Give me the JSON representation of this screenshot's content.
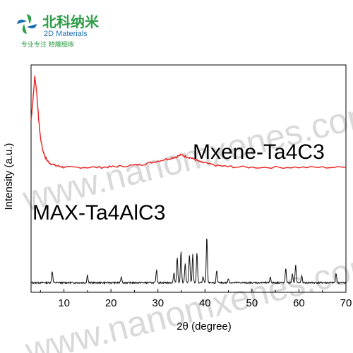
{
  "logo": {
    "name_cn": "北科纳米",
    "name_en": "2D Materials",
    "tagline": "专业专注  精雕细琢",
    "brand_green": "#2e9e48",
    "brand_blue": "#1c6fb5",
    "icon": "pinwheel-logo-icon"
  },
  "watermark": {
    "text": "www.nanomxenes.com",
    "color": "#d9d9d9"
  },
  "chart_data": {
    "type": "line",
    "title": "",
    "xlabel": "2θ (degree)",
    "ylabel": "Intensity (a.u.)",
    "xlim": [
      3,
      70
    ],
    "xticks": [
      10,
      20,
      30,
      40,
      50,
      60,
      70
    ],
    "y_tick_labels": false,
    "grid": false,
    "legend": "none",
    "series": [
      {
        "name": "Mxene-Ta4C3",
        "color": "#e8201f",
        "x": [
          3.0,
          3.4,
          3.8,
          4.2,
          4.6,
          5.0,
          5.5,
          6.0,
          6.5,
          7.0,
          8.0,
          9.0,
          10.0,
          12.0,
          15.0,
          18.0,
          20.0,
          22.0,
          25.0,
          27.0,
          29.0,
          31.0,
          33.0,
          34.0,
          35.0,
          36.0,
          37.0,
          38.0,
          39.0,
          40.0,
          42.0,
          44.0,
          46.0,
          50.0,
          55.0,
          60.0,
          65.0,
          70.0
        ],
        "y": [
          0.58,
          0.78,
          1.0,
          0.85,
          0.6,
          0.42,
          0.3,
          0.24,
          0.2,
          0.18,
          0.16,
          0.15,
          0.14,
          0.14,
          0.14,
          0.14,
          0.145,
          0.15,
          0.16,
          0.17,
          0.19,
          0.21,
          0.23,
          0.24,
          0.26,
          0.24,
          0.23,
          0.21,
          0.19,
          0.18,
          0.16,
          0.15,
          0.145,
          0.14,
          0.14,
          0.14,
          0.14,
          0.14
        ]
      },
      {
        "name": "MAX-Ta4AlC3",
        "color": "#111111",
        "baseline": 0.04,
        "range": [
          3,
          70
        ],
        "peaks": [
          [
            7.5,
            0.12
          ],
          [
            15.0,
            0.08
          ],
          [
            22.2,
            0.06
          ],
          [
            29.7,
            0.13
          ],
          [
            33.4,
            0.1
          ],
          [
            34.1,
            0.26
          ],
          [
            34.9,
            0.32
          ],
          [
            35.8,
            0.2
          ],
          [
            36.7,
            0.28
          ],
          [
            37.4,
            0.29
          ],
          [
            38.3,
            0.31
          ],
          [
            39.6,
            0.06
          ],
          [
            40.4,
            0.47
          ],
          [
            42.5,
            0.12
          ],
          [
            45.0,
            0.04
          ],
          [
            53.9,
            0.06
          ],
          [
            57.2,
            0.14
          ],
          [
            58.6,
            0.09
          ],
          [
            59.3,
            0.18
          ],
          [
            60.6,
            0.07
          ],
          [
            67.9,
            0.1
          ]
        ]
      }
    ]
  }
}
